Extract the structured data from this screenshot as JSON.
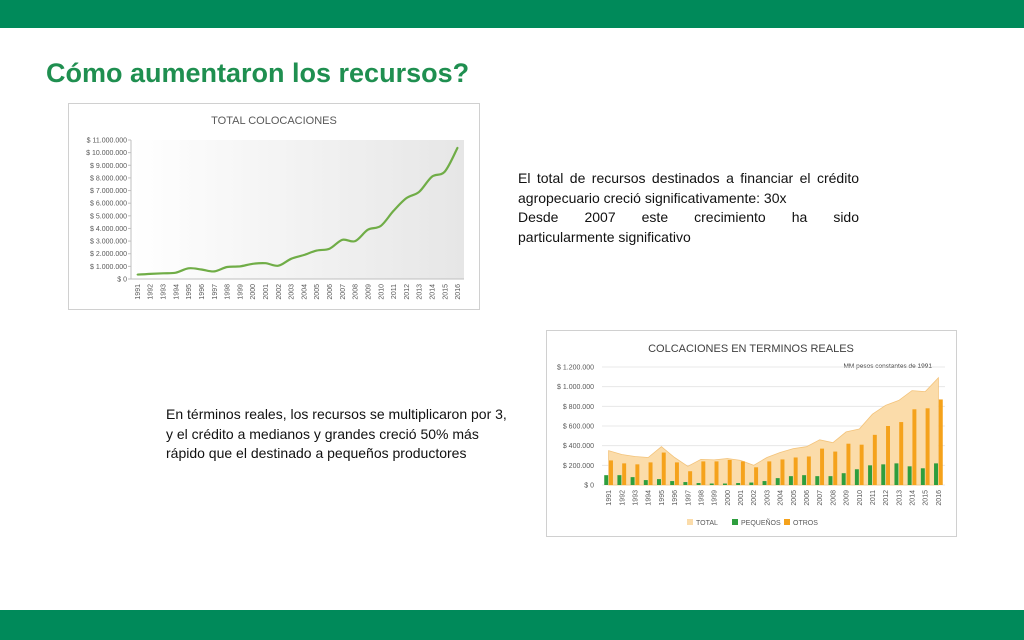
{
  "colors": {
    "band": "#008a5a",
    "title": "#1f8f50",
    "line": "#70ad47",
    "pequenos": "#2e9e3e",
    "otros": "#f5a21b",
    "total_area": "#fbdcaa"
  },
  "heading": "Cómo aumentaron los recursos?",
  "text_right": {
    "line1": "El total de recursos destinados a financiar el crédito",
    "line2": "agropecuario creció significativamente: 30x",
    "line3": "Desde 2007 este crecimiento ha sido",
    "line4": "particularmente significativo"
  },
  "text_left": "En términos reales, los recursos se multiplicaron por 3, y el crédito a medianos y grandes creció 50% más rápido que el destinado a pequeños productores",
  "chart_data": [
    {
      "type": "line",
      "title": "TOTAL COLOCACIONES",
      "ylim": [
        0,
        11000000
      ],
      "yticks": [
        0,
        1000000,
        2000000,
        3000000,
        4000000,
        5000000,
        6000000,
        7000000,
        8000000,
        9000000,
        10000000,
        11000000
      ],
      "ytick_labels": [
        "$ 0",
        "$ 1.000.000",
        "$ 2.000.000",
        "$ 3.000.000",
        "$ 4.000.000",
        "$ 5.000.000",
        "$ 6.000.000",
        "$ 7.000.000",
        "$ 8.000.000",
        "$ 9.000.000",
        "$ 10.000.000",
        "$ 11.000.000"
      ],
      "x": [
        "1991",
        "1992",
        "1993",
        "1994",
        "1995",
        "1996",
        "1997",
        "1998",
        "1999",
        "2000",
        "2001",
        "2002",
        "2003",
        "2004",
        "2005",
        "2006",
        "2007",
        "2008",
        "2009",
        "2010",
        "2011",
        "2012",
        "2013",
        "2014",
        "2015",
        "2016"
      ],
      "values": [
        350000,
        400000,
        450000,
        500000,
        850000,
        750000,
        600000,
        950000,
        1000000,
        1200000,
        1250000,
        1050000,
        1600000,
        1900000,
        2250000,
        2400000,
        3100000,
        3000000,
        3900000,
        4200000,
        5400000,
        6400000,
        6900000,
        8100000,
        8500000,
        10400000
      ],
      "grid": false
    },
    {
      "type": "bar",
      "title": "COLCACIONES EN TERMINOS REALES",
      "annotation": "MM pesos constantes de 1991",
      "ylim": [
        0,
        1200000
      ],
      "yticks": [
        0,
        200000,
        400000,
        600000,
        800000,
        1000000,
        1200000
      ],
      "ytick_labels": [
        "$ 0",
        "$ 200.000",
        "$ 400.000",
        "$ 600.000",
        "$ 800.000",
        "$ 1.000.000",
        "$ 1.200.000"
      ],
      "x": [
        "1991",
        "1992",
        "1993",
        "1994",
        "1995",
        "1996",
        "1997",
        "1998",
        "1999",
        "2000",
        "2001",
        "2002",
        "2003",
        "2004",
        "2005",
        "2006",
        "2007",
        "2008",
        "2009",
        "2010",
        "2011",
        "2012",
        "2013",
        "2014",
        "2015",
        "2016"
      ],
      "legend_position": "bottom",
      "series": [
        {
          "name": "TOTAL",
          "kind": "area",
          "values": [
            350000,
            310000,
            290000,
            280000,
            390000,
            280000,
            190000,
            260000,
            255000,
            270000,
            250000,
            200000,
            280000,
            330000,
            370000,
            390000,
            460000,
            430000,
            540000,
            570000,
            720000,
            810000,
            860000,
            960000,
            950000,
            1090000
          ]
        },
        {
          "name": "PEQUEÑOS",
          "kind": "bar",
          "values": [
            100000,
            100000,
            80000,
            50000,
            60000,
            40000,
            30000,
            20000,
            15000,
            15000,
            20000,
            25000,
            40000,
            70000,
            90000,
            100000,
            90000,
            90000,
            120000,
            160000,
            200000,
            210000,
            220000,
            190000,
            170000,
            220000
          ]
        },
        {
          "name": "OTROS",
          "kind": "bar",
          "values": [
            250000,
            220000,
            210000,
            230000,
            330000,
            230000,
            140000,
            240000,
            240000,
            255000,
            240000,
            180000,
            240000,
            260000,
            280000,
            290000,
            370000,
            340000,
            420000,
            410000,
            510000,
            600000,
            640000,
            770000,
            780000,
            870000
          ]
        }
      ],
      "grid": true
    }
  ]
}
